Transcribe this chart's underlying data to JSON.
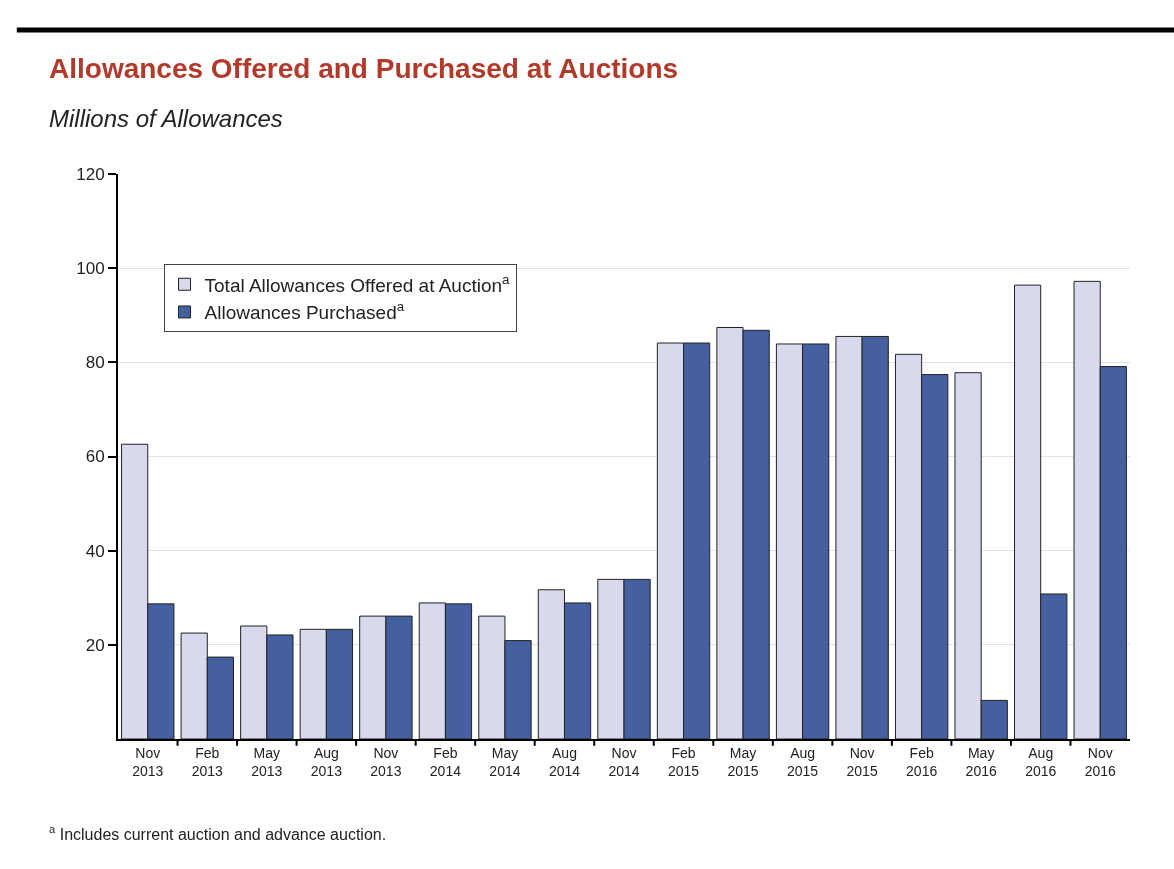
{
  "chart_data": {
    "type": "bar",
    "title": "Allowances Offered and Purchased at Auctions",
    "subtitle": "Millions of Allowances",
    "categories": [
      "Nov 2013",
      "Feb 2013",
      "May 2013",
      "Aug 2013",
      "Nov 2013",
      "Feb 2014",
      "May 2014",
      "Aug 2014",
      "Nov 2014",
      "Feb 2015",
      "May 2015",
      "Aug 2015",
      "Nov 2015",
      "Feb 2016",
      "May 2016",
      "Aug 2016",
      "Nov 2016"
    ],
    "series": [
      {
        "name": "Total Allowances Offered at Auction$^{a}$",
        "color": "#d8d9ec",
        "values": [
          62.6,
          22.5,
          24.0,
          23.3,
          26.1,
          28.9,
          26.1,
          31.7,
          33.9,
          84.1,
          87.4,
          83.9,
          85.5,
          81.7,
          77.8,
          96.4,
          97.2
        ]
      },
      {
        "name": "Allowances Purchased$^{a}$",
        "color": "#4560a0",
        "values": [
          28.7,
          17.4,
          22.1,
          23.3,
          26.1,
          28.7,
          20.9,
          28.9,
          33.9,
          84.1,
          86.8,
          83.9,
          85.5,
          77.4,
          8.2,
          30.8,
          79.1
        ]
      }
    ],
    "ylim": [
      0,
      120
    ],
    "yticks": [
      20,
      40,
      60,
      80,
      100,
      120
    ],
    "grid": "y",
    "legend": "top left",
    "annotations": [
      "$^{a}$ Includes current auction and advance auction."
    ]
  }
}
